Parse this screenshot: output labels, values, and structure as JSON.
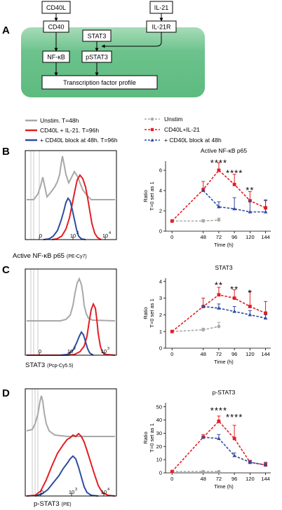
{
  "panel_a": {
    "letter": "A",
    "nodes": {
      "cd40l": "CD40L",
      "il21": "IL-21",
      "cd40": "CD40",
      "stat3": "STAT3",
      "il21r": "IL-21R",
      "nfkb": "NF-κB",
      "pstat3": "pSTAT3",
      "tf": "Transcription factor profile"
    },
    "colors": {
      "cell": "#5dbb7f",
      "cell_light": "#a7dcb8"
    }
  },
  "legend_left": [
    {
      "label": "Unstim. T=48h",
      "color": "#a8a8a8"
    },
    {
      "label": "CD40L + IL-21. T=96h",
      "color": "#e31e24"
    },
    {
      "label": "+ CD40L block at 48h. T=96h",
      "color": "#2e4da0"
    }
  ],
  "legend_right": [
    {
      "label": "Unstim",
      "color": "#a8a8a8"
    },
    {
      "label": "CD40L+IL-21",
      "color": "#e31e24"
    },
    {
      "label": "+ CD40L block at 48h",
      "color": "#2e4da0"
    }
  ],
  "histograms": {
    "tick_labels": [
      "0",
      "10",
      "10",
      "10"
    ],
    "tick_exponents": [
      "",
      "2",
      "3",
      "4"
    ],
    "rows": [
      {
        "letter": "B",
        "marker": "Active NF-κB p65",
        "fluor": "(PE-Cy7)"
      },
      {
        "letter": "C",
        "marker": "STAT3",
        "fluor": "(Pcp-Cy5.5)"
      },
      {
        "letter": "D",
        "marker": "p-STAT3",
        "fluor": "(PE)"
      }
    ]
  },
  "chart_data": [
    {
      "type": "line",
      "title": "Active NF-κB p65",
      "xlabel": "Time (h)",
      "ylabel": "Ratio\nT=0 set as 1",
      "ylabel_lines": [
        "Ratio",
        "T=0 set as 1"
      ],
      "xticks": [
        0,
        48,
        72,
        96,
        120,
        144
      ],
      "yticks": [
        0,
        2,
        4,
        6
      ],
      "xlim": [
        -10,
        152
      ],
      "ylim": [
        0,
        6.9
      ],
      "series": [
        {
          "name": "Unstim",
          "color": "#a8a8a8",
          "x": [
            0,
            48,
            72
          ],
          "y": [
            1,
            1,
            1.1
          ],
          "err": [
            0,
            0.15,
            0.2
          ]
        },
        {
          "name": "CD40L+IL-21",
          "color": "#e31e24",
          "x": [
            0,
            48,
            72,
            96,
            120,
            144
          ],
          "y": [
            1,
            4.1,
            6.0,
            4.6,
            3.0,
            2.3
          ],
          "err": [
            0,
            0.8,
            0.75,
            1.0,
            0.9,
            0.8
          ]
        },
        {
          "name": "+ CD40L block at 48h",
          "color": "#2e4da0",
          "x": [
            48,
            72,
            96,
            120,
            144
          ],
          "y": [
            4.0,
            2.4,
            2.2,
            1.9,
            1.9
          ],
          "err": [
            0,
            0.5,
            1.1,
            1.1,
            1.1
          ]
        }
      ],
      "annotations": [
        {
          "x": 72,
          "y": 6.7,
          "text": "****"
        },
        {
          "x": 96,
          "y": 5.7,
          "text": "****"
        },
        {
          "x": 120,
          "y": 4.0,
          "text": "**"
        }
      ]
    },
    {
      "type": "line",
      "title": "STAT3",
      "xlabel": "Time (h)",
      "ylabel": "Ratio\nT=0 set as 1",
      "ylabel_lines": [
        "Ratio",
        "T=0 set as 1"
      ],
      "xticks": [
        0,
        48,
        72,
        96,
        120,
        144
      ],
      "yticks": [
        0,
        1,
        2,
        3,
        4
      ],
      "xlim": [
        -10,
        152
      ],
      "ylim": [
        0,
        4.2
      ],
      "series": [
        {
          "name": "Unstim",
          "color": "#a8a8a8",
          "x": [
            0,
            48,
            72
          ],
          "y": [
            1,
            1.1,
            1.3
          ],
          "err": [
            0,
            0.1,
            0.25
          ]
        },
        {
          "name": "CD40L+IL-21",
          "color": "#e31e24",
          "x": [
            0,
            48,
            72,
            96,
            120,
            144
          ],
          "y": [
            1,
            2.5,
            3.2,
            3.0,
            2.5,
            2.1
          ],
          "err": [
            0,
            0.5,
            0.45,
            0.5,
            0.9,
            0.7
          ]
        },
        {
          "name": "+ CD40L block at 48h",
          "color": "#2e4da0",
          "x": [
            48,
            72,
            96,
            120,
            144
          ],
          "y": [
            2.5,
            2.4,
            2.2,
            2.0,
            1.8
          ],
          "err": [
            0,
            0.25,
            0.3,
            0.25,
            0.2
          ]
        }
      ],
      "annotations": [
        {
          "x": 72,
          "y": 3.75,
          "text": "**"
        },
        {
          "x": 96,
          "y": 3.5,
          "text": "**"
        },
        {
          "x": 120,
          "y": 3.3,
          "text": "*"
        }
      ]
    },
    {
      "type": "line",
      "title": "p-STAT3",
      "xlabel": "Time (h)",
      "ylabel": "Ratio\nT=0 set as 1",
      "ylabel_lines": [
        "Ratio",
        "T=0 set as 1"
      ],
      "xticks": [
        0,
        48,
        72,
        96,
        120,
        144
      ],
      "yticks": [
        0,
        10,
        20,
        30,
        40,
        50
      ],
      "xlim": [
        -10,
        152
      ],
      "ylim": [
        0,
        53
      ],
      "series": [
        {
          "name": "Unstim",
          "color": "#a8a8a8",
          "x": [
            0,
            48,
            72
          ],
          "y": [
            1,
            1,
            1
          ],
          "err": [
            0,
            0.3,
            0.3
          ]
        },
        {
          "name": "CD40L+IL-21",
          "color": "#e31e24",
          "x": [
            0,
            48,
            72,
            96,
            120,
            144
          ],
          "y": [
            1,
            27,
            39,
            26,
            8,
            6
          ],
          "err": [
            0,
            2,
            4,
            10,
            1.5,
            2
          ]
        },
        {
          "name": "+ CD40L block at 48h",
          "color": "#2e4da0",
          "x": [
            48,
            72,
            96,
            120,
            144
          ],
          "y": [
            27,
            26,
            13,
            8,
            6
          ],
          "err": [
            0,
            3,
            2,
            1,
            1.5
          ]
        }
      ],
      "annotations": [
        {
          "x": 72,
          "y": 47,
          "text": "****"
        },
        {
          "x": 96,
          "y": 42,
          "text": "****"
        }
      ]
    }
  ]
}
